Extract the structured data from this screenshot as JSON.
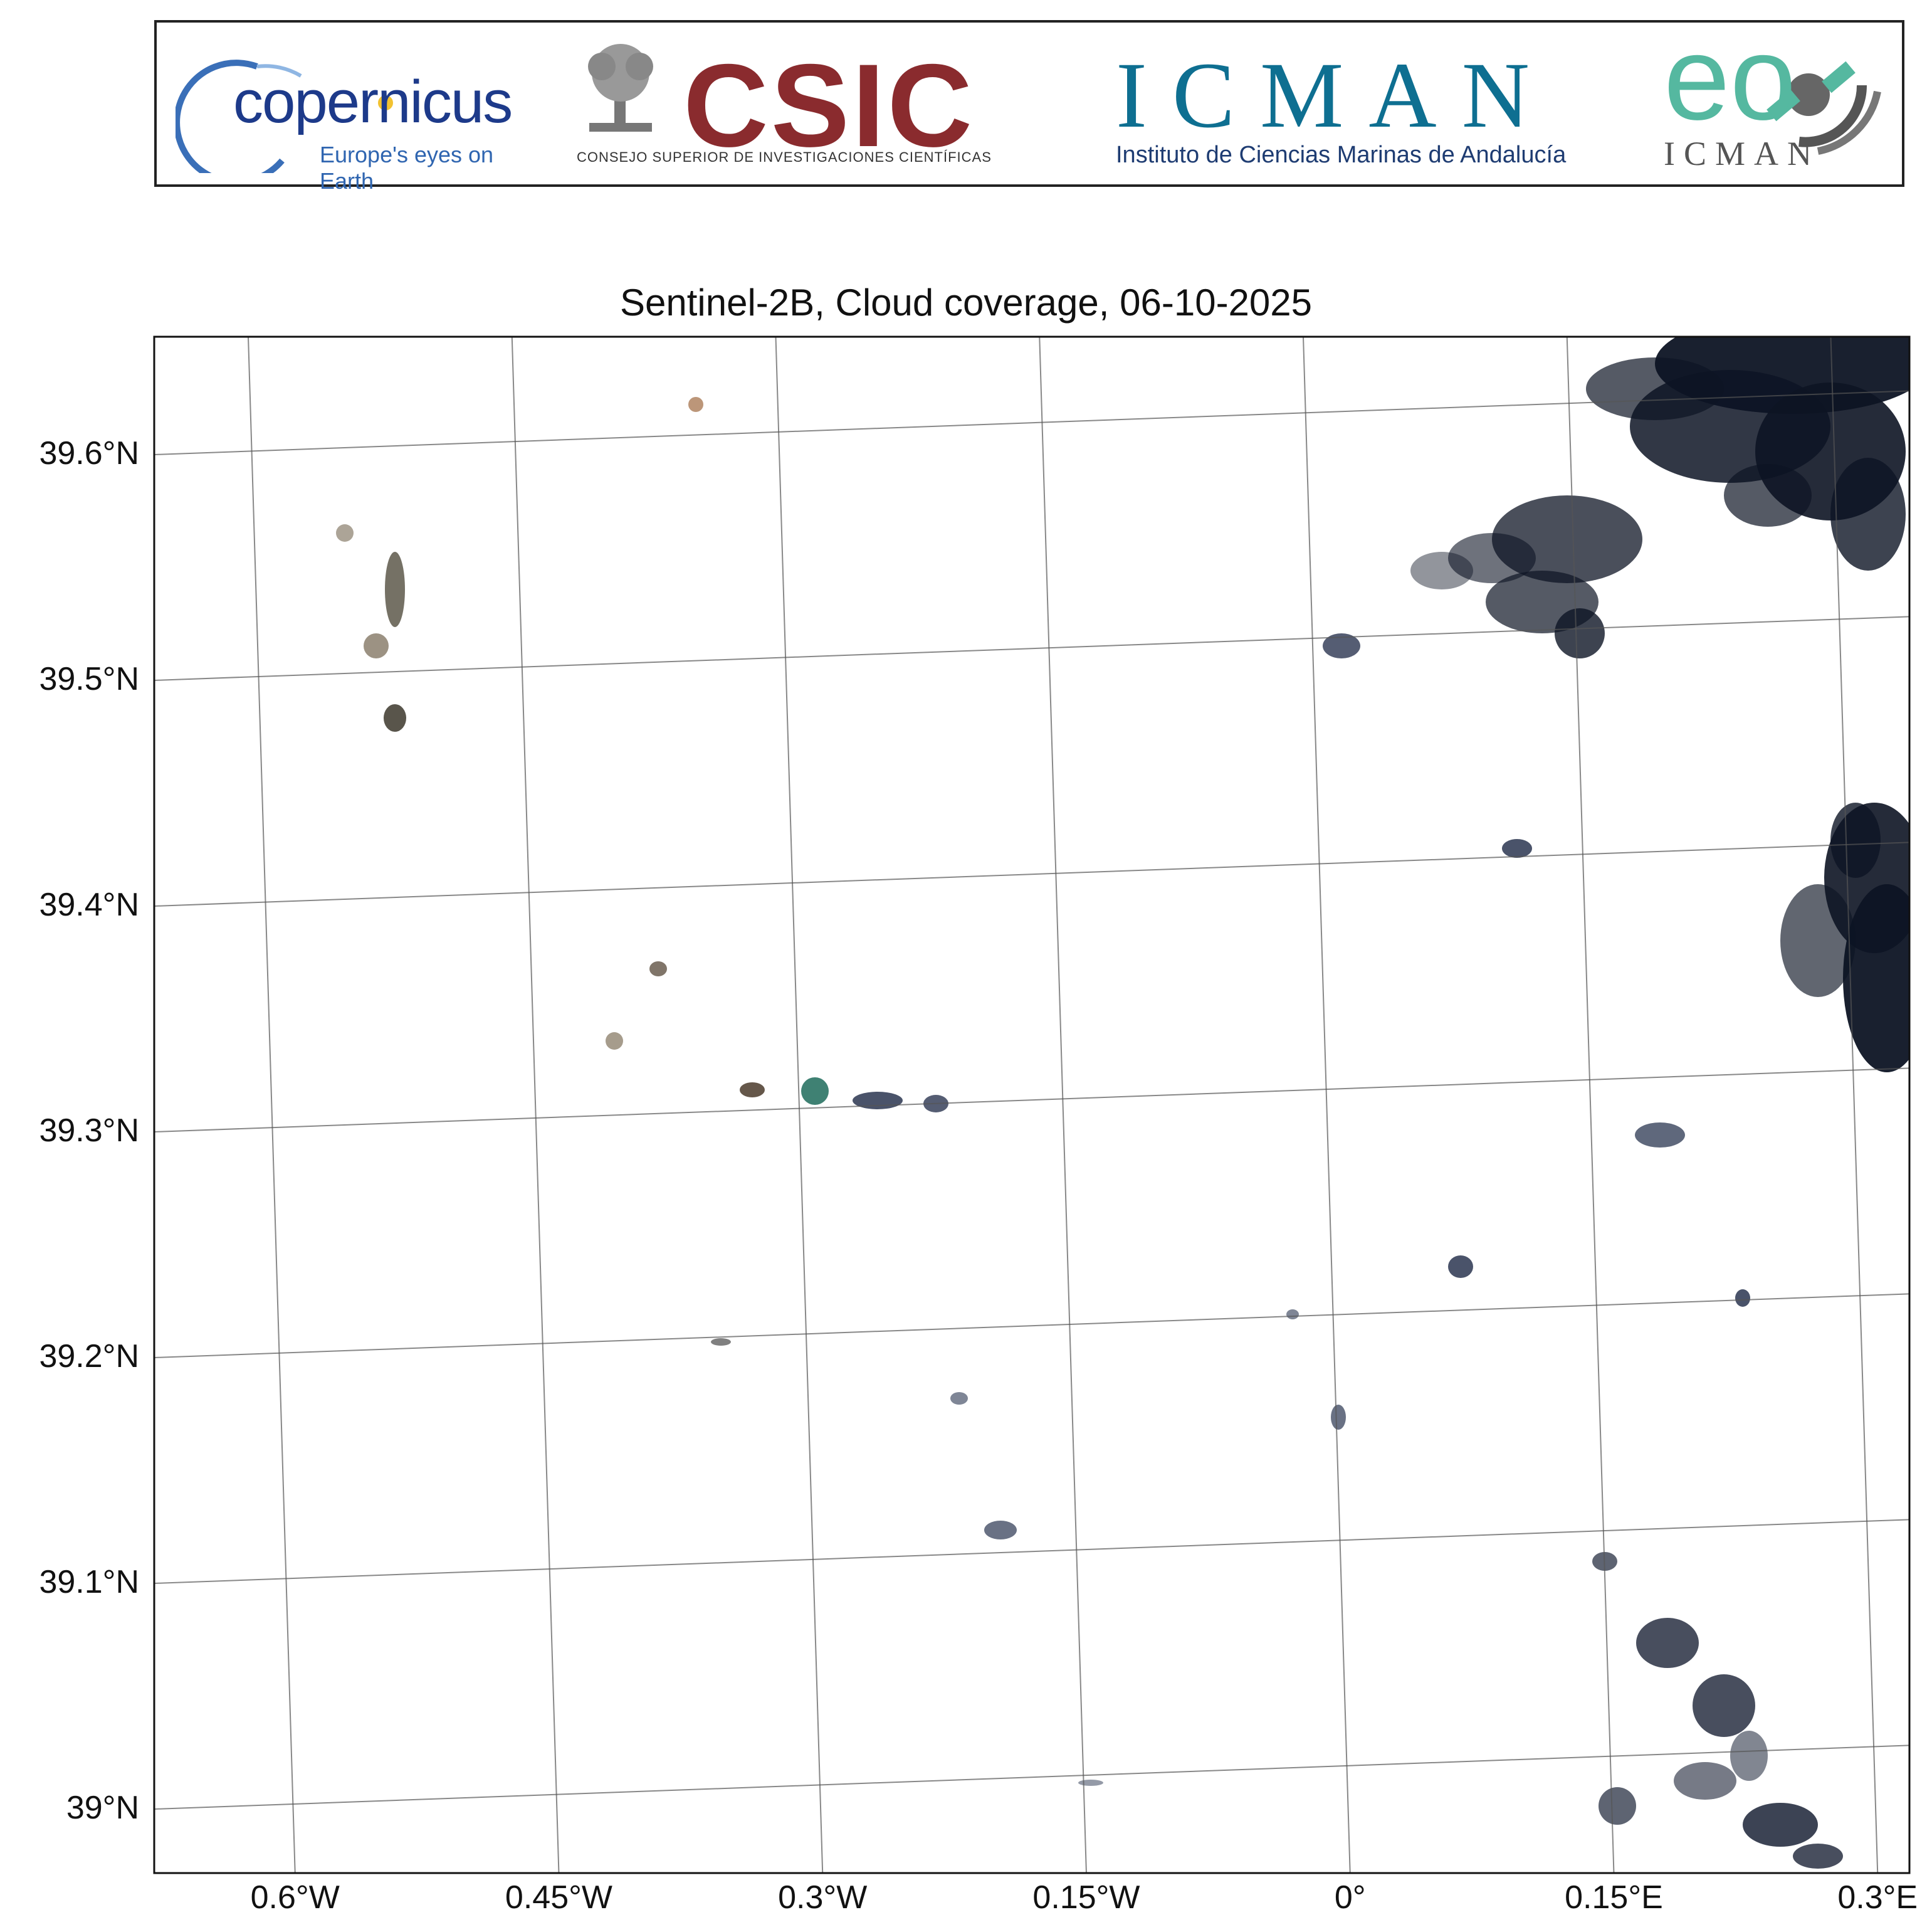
{
  "banner": {
    "copernicus": {
      "name": "copernicus",
      "tagline": "Europe's eyes on Earth"
    },
    "csic": {
      "name": "CSIC",
      "subtitle": "Consejo Superior de Investigaciones Científicas"
    },
    "icman": {
      "name": "ICMAN",
      "subtitle": "Instituto de Ciencias Marinas de Andalucía"
    },
    "eo": {
      "name": "eo",
      "subtitle": "ICMAN"
    }
  },
  "map": {
    "title": "Sentinel-2B, Cloud coverage, 06-10-2025",
    "lat_labels": [
      "39.6°N",
      "39.5°N",
      "39.4°N",
      "39.3°N",
      "39.2°N",
      "39.1°N",
      "39°N"
    ],
    "lat_values": [
      39.6,
      39.5,
      39.4,
      39.3,
      39.2,
      39.1,
      39.0
    ],
    "lon_labels": [
      "0.6°W",
      "0.45°W",
      "0.3°W",
      "0.15°W",
      "0°",
      "0.15°E",
      "0.3°E"
    ],
    "lon_values": [
      -0.6,
      -0.45,
      -0.3,
      -0.15,
      0.0,
      0.15,
      0.3
    ],
    "grid": true,
    "colors": {
      "cloud_dark": "#0d1424",
      "cloud_mid": "#3a4660",
      "cloud_light": "#aab4c8",
      "land_brown": "#6b5a40",
      "water_green": "#1d6b5a",
      "grid": "#555555"
    }
  }
}
